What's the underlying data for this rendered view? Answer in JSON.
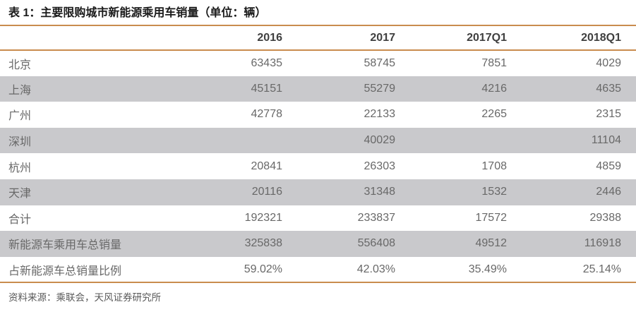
{
  "table": {
    "title": "表 1：主要限购城市新能源乘用车销量（单位：辆）",
    "columns": [
      "",
      "2016",
      "2017",
      "2017Q1",
      "2018Q1"
    ],
    "rows": [
      {
        "label": "北京",
        "values": [
          "63435",
          "58745",
          "7851",
          "4029"
        ]
      },
      {
        "label": "上海",
        "values": [
          "45151",
          "55279",
          "4216",
          "4635"
        ]
      },
      {
        "label": "广州",
        "values": [
          "42778",
          "22133",
          "2265",
          "2315"
        ]
      },
      {
        "label": "深圳",
        "values": [
          "",
          "40029",
          "",
          "11104"
        ]
      },
      {
        "label": "杭州",
        "values": [
          "20841",
          "26303",
          "1708",
          "4859"
        ]
      },
      {
        "label": "天津",
        "values": [
          "20116",
          "31348",
          "1532",
          "2446"
        ]
      },
      {
        "label": "合计",
        "values": [
          "192321",
          "233837",
          "17572",
          "29388"
        ]
      },
      {
        "label": "新能源车乘用车总销量",
        "values": [
          "325838",
          "556408",
          "49512",
          "116918"
        ]
      },
      {
        "label": "占新能源车总销量比例",
        "values": [
          "59.02%",
          "42.03%",
          "35.49%",
          "25.14%"
        ]
      }
    ],
    "source": "资料来源：乘联会，天风证券研究所"
  },
  "colors": {
    "accent_line": "#c98c4e",
    "alt_row_background": "#c9c9cc",
    "title_text": "#1a1a1a",
    "header_text": "#3f3f3f",
    "body_text": "#686868",
    "source_text": "#595959"
  },
  "chart_data": {
    "type": "table",
    "title": "表 1：主要限购城市新能源乘用车销量（单位：辆）",
    "columns": [
      "",
      "2016",
      "2017",
      "2017Q1",
      "2018Q1"
    ],
    "rows": [
      [
        "北京",
        63435,
        58745,
        7851,
        4029
      ],
      [
        "上海",
        45151,
        55279,
        4216,
        4635
      ],
      [
        "广州",
        42778,
        22133,
        2265,
        2315
      ],
      [
        "深圳",
        null,
        40029,
        null,
        11104
      ],
      [
        "杭州",
        20841,
        26303,
        1708,
        4859
      ],
      [
        "天津",
        20116,
        31348,
        1532,
        2446
      ],
      [
        "合计",
        192321,
        233837,
        17572,
        29388
      ],
      [
        "新能源车乘用车总销量",
        325838,
        556408,
        49512,
        116918
      ],
      [
        "占新能源车总销量比例",
        "59.02%",
        "42.03%",
        "35.49%",
        "25.14%"
      ]
    ],
    "source": "资料来源：乘联会，天风证券研究所",
    "layout_hints": {
      "striped_rows": true,
      "stripe_pattern": "even rows shaded gray starting with second data row",
      "numeric_alignment": "right",
      "rule_lines": [
        "below title",
        "below header",
        "below last data row"
      ]
    }
  }
}
